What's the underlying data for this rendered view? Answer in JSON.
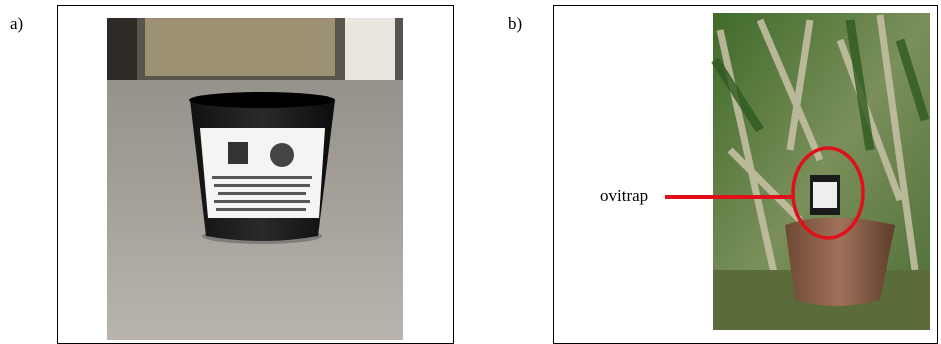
{
  "panels": [
    {
      "label": "a)"
    },
    {
      "label": "b)",
      "annotation": "ovitrap"
    }
  ]
}
